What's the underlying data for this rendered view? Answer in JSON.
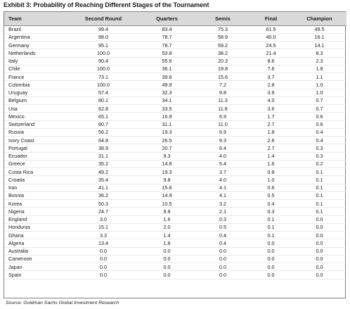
{
  "title": "Exhibit 3: Probability of Reaching Different Stages of the Tournament",
  "columns": [
    "Team",
    "Second Round",
    "Quarters",
    "Semis",
    "Final",
    "Champion"
  ],
  "rows": [
    [
      "Brazil",
      "99.4",
      "83.4",
      "75.3",
      "61.5",
      "49.5"
    ],
    [
      "Argentina",
      "98.0",
      "78.7",
      "58.9",
      "40.0",
      "16.1"
    ],
    [
      "Germany",
      "95.1",
      "78.7",
      "59.2",
      "24.5",
      "14.1"
    ],
    [
      "Netherlands",
      "100.0",
      "53.8",
      "38.2",
      "21.4",
      "8.3"
    ],
    [
      "Italy",
      "90.4",
      "55.6",
      "20.3",
      "8.6",
      "2.3"
    ],
    [
      "Chile",
      "100.0",
      "36.1",
      "19.8",
      "7.6",
      "1.8"
    ],
    [
      "France",
      "73.1",
      "39.6",
      "15.6",
      "3.7",
      "1.1"
    ],
    [
      "Colombia",
      "100.0",
      "49.9",
      "7.2",
      "2.8",
      "1.0"
    ],
    [
      "Uruguay",
      "57.4",
      "32.3",
      "9.8",
      "3.9",
      "1.0"
    ],
    [
      "Belgium",
      "80.1",
      "34.1",
      "11.3",
      "4.0",
      "0.7"
    ],
    [
      "Usa",
      "62.8",
      "33.5",
      "11.8",
      "3.6",
      "0.7"
    ],
    [
      "Mexico",
      "65.1",
      "16.9",
      "6.9",
      "1.7",
      "0.6"
    ],
    [
      "Switzerland",
      "80.7",
      "31.1",
      "11.0",
      "2.7",
      "0.6"
    ],
    [
      "Russia",
      "56.2",
      "19.3",
      "6.9",
      "1.8",
      "0.4"
    ],
    [
      "Ivory Coast",
      "64.8",
      "26.5",
      "9.3",
      "2.6",
      "0.4"
    ],
    [
      "Portugal",
      "38.9",
      "20.7",
      "6.4",
      "2.7",
      "0.3"
    ],
    [
      "Ecuador",
      "31.1",
      "9.3",
      "4.0",
      "1.4",
      "0.3"
    ],
    [
      "Greece",
      "35.2",
      "14.8",
      "5.4",
      "1.6",
      "0.2"
    ],
    [
      "Costa Rica",
      "49.2",
      "19.3",
      "3.7",
      "0.8",
      "0.1"
    ],
    [
      "Croatia",
      "35.4",
      "9.8",
      "4.0",
      "1.0",
      "0.1"
    ],
    [
      "Iran",
      "41.1",
      "15.6",
      "4.1",
      "0.6",
      "0.1"
    ],
    [
      "Bosnia",
      "36.2",
      "14.9",
      "4.1",
      "0.5",
      "0.1"
    ],
    [
      "Korea",
      "50.3",
      "10.5",
      "3.2",
      "0.4",
      "0.1"
    ],
    [
      "Nigeria",
      "24.7",
      "8.8",
      "2.1",
      "0.3",
      "0.1"
    ],
    [
      "England",
      "3.0",
      "1.6",
      "0.3",
      "0.1",
      "0.0"
    ],
    [
      "Honduras",
      "15.1",
      "2.0",
      "0.5",
      "0.1",
      "0.0"
    ],
    [
      "Ghana",
      "3.3",
      "1.4",
      "0.4",
      "0.1",
      "0.0"
    ],
    [
      "Algeria",
      "13.4",
      "1.8",
      "0.4",
      "0.0",
      "0.0"
    ],
    [
      "Australia",
      "0.0",
      "0.0",
      "0.0",
      "0.0",
      "0.0"
    ],
    [
      "Cameroon",
      "0.0",
      "0.0",
      "0.0",
      "0.0",
      "0.0"
    ],
    [
      "Japan",
      "0.0",
      "0.0",
      "0.0",
      "0.0",
      "0.0"
    ],
    [
      "Spain",
      "0.0",
      "0.0",
      "0.0",
      "0.0",
      "0.0"
    ]
  ],
  "source": "Source: Goldman Sachs Global Investment Research",
  "colors": {
    "header_bg": "#d9d9d9",
    "border": "#7f7f7f"
  }
}
